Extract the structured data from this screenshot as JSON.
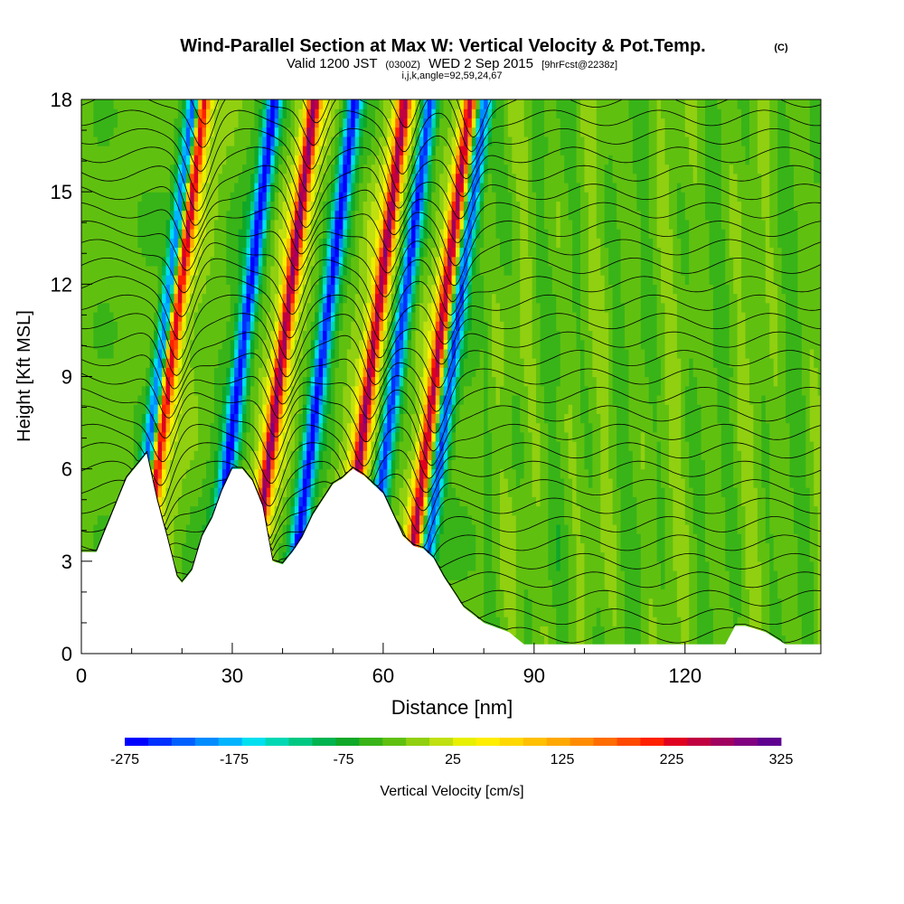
{
  "header": {
    "title": "Wind-Parallel Section at Max W: Vertical Velocity & Pot.Temp.",
    "copyright": "(C)",
    "subtitle_valid": "Valid 1200 JST",
    "subtitle_zulu": "(0300Z)",
    "subtitle_date": "WED 2 Sep 2015",
    "subtitle_fcst": "[9hrFcst@2238z]",
    "subtitle_indices": "i,j,k,angle=92,59,24,67"
  },
  "chart_data": {
    "type": "heatmap",
    "xlabel": "Distance [nm]",
    "ylabel": "Height [Kft MSL]",
    "xlim": [
      0,
      147
    ],
    "ylim": [
      0,
      18
    ],
    "x_ticks": [
      "0",
      "30",
      "60",
      "90",
      "120"
    ],
    "x_tick_values": [
      0,
      30,
      60,
      90,
      120
    ],
    "y_ticks": [
      "0",
      "3",
      "6",
      "9",
      "12",
      "15",
      "18"
    ],
    "y_tick_values": [
      0,
      3,
      6,
      9,
      12,
      15,
      18
    ],
    "contour_variable": "Potential Temperature",
    "colorbar": {
      "label": "Vertical Velocity [cm/s]",
      "tick_labels": [
        "-275",
        "-175",
        "-75",
        "25",
        "125",
        "225",
        "325"
      ],
      "tick_values": [
        -275,
        -175,
        -75,
        25,
        125,
        225,
        325
      ],
      "min": -275,
      "max": 325,
      "step": 25,
      "colors": [
        "#0000ff",
        "#0030ff",
        "#0060ff",
        "#008cff",
        "#00b4ff",
        "#00e0f0",
        "#00d8b4",
        "#00c882",
        "#00b450",
        "#10a828",
        "#38b418",
        "#60c010",
        "#90d010",
        "#c0e010",
        "#e8f000",
        "#ffee00",
        "#ffd800",
        "#ffc000",
        "#ffa800",
        "#ff8c00",
        "#ff6c00",
        "#ff4800",
        "#ff2000",
        "#e00020",
        "#c00040",
        "#a00060",
        "#800080",
        "#600090"
      ]
    },
    "updraft_peaks_x": [
      15,
      37,
      55,
      68
    ],
    "downdraft_troughs_x": [
      13,
      29,
      45,
      60,
      71
    ],
    "terrain": {
      "x": [
        0,
        3,
        6,
        9,
        11,
        13,
        15,
        17,
        19,
        20,
        22,
        24,
        26,
        28,
        30,
        32,
        34,
        36,
        38,
        40,
        42,
        44,
        46,
        48,
        50,
        52,
        54,
        56,
        58,
        60,
        62,
        64,
        66,
        68,
        70,
        72,
        76,
        80,
        85,
        88,
        92,
        96,
        100,
        104,
        108,
        112,
        116,
        120,
        124,
        128,
        130,
        132,
        136,
        140,
        144,
        147
      ],
      "height": [
        3.3,
        3.3,
        4.5,
        5.7,
        6.1,
        6.5,
        5.0,
        3.8,
        2.5,
        2.3,
        2.7,
        3.8,
        4.4,
        5.3,
        6.0,
        6.0,
        5.6,
        4.8,
        3.0,
        2.9,
        3.3,
        3.8,
        4.5,
        5.0,
        5.5,
        5.7,
        6.0,
        5.8,
        5.5,
        5.2,
        4.5,
        3.8,
        3.5,
        3.4,
        3.1,
        2.5,
        1.5,
        1.0,
        0.7,
        0.3,
        0.3,
        0.3,
        0.3,
        0.3,
        0.3,
        0.3,
        0.3,
        0.3,
        0.3,
        0.3,
        0.9,
        0.9,
        0.7,
        0.3,
        0.3,
        0.3
      ]
    }
  }
}
